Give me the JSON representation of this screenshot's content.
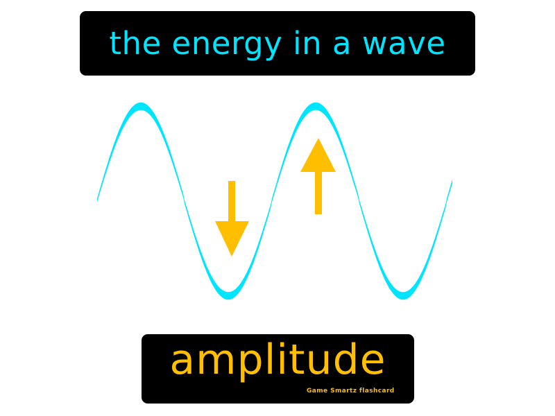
{
  "card": {
    "definition": "the energy in a wave",
    "term": "amplitude",
    "brand": "Game Smartz  flashcard"
  },
  "colors": {
    "wave": "#00e5ff",
    "arrow": "#ffbf00",
    "definition_text": "#00e5ff",
    "term_text": "#ffbf00",
    "brand_text": "#ffbf00",
    "box_background": "#000000",
    "page_background": "#ffffff"
  },
  "diagram": {
    "wave_icon": "sine-wave",
    "arrows": [
      {
        "name": "arrow-down-icon",
        "direction": "down"
      },
      {
        "name": "arrow-up-icon",
        "direction": "up"
      }
    ]
  }
}
